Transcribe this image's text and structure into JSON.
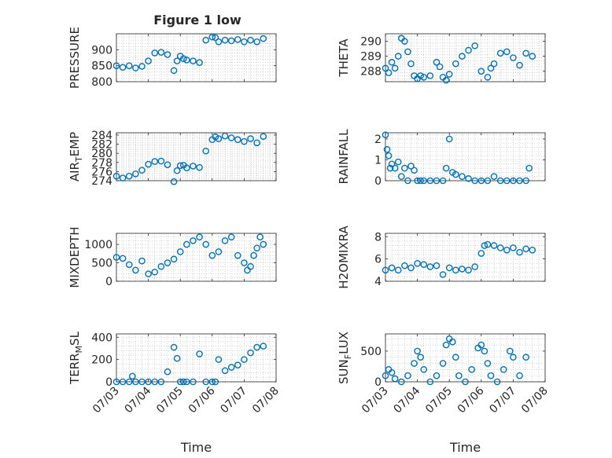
{
  "figure": {
    "title": "Figure 1 low"
  },
  "colors": {
    "marker": "#0072BD",
    "axis": "#262626",
    "grid": "#b8b8b8",
    "background": "#ffffff"
  },
  "chart_data": [
    {
      "type": "scatter",
      "ylabel": "PRESSURE",
      "ylim": [
        800,
        950
      ],
      "yticks": [
        800,
        850,
        900
      ],
      "xlim": [
        0,
        5
      ],
      "xticks": [
        0,
        1,
        2,
        3,
        4,
        5
      ],
      "x_tick_labels": [],
      "xlabel": "",
      "grid": true,
      "x": [
        0.0,
        0.2,
        0.4,
        0.6,
        0.8,
        1.0,
        1.2,
        1.4,
        1.6,
        1.8,
        1.9,
        2.0,
        2.1,
        2.2,
        2.4,
        2.6,
        2.8,
        3.0,
        3.1,
        3.2,
        3.4,
        3.6,
        3.8,
        4.0,
        4.2,
        4.4,
        4.6
      ],
      "y": [
        850,
        845,
        850,
        843,
        848,
        865,
        890,
        892,
        885,
        835,
        865,
        880,
        872,
        868,
        865,
        860,
        930,
        940,
        938,
        925,
        930,
        928,
        932,
        925,
        930,
        925,
        935
      ]
    },
    {
      "type": "scatter",
      "ylabel": "THETA",
      "ylim": [
        287.3,
        290.5
      ],
      "yticks": [
        288,
        289,
        290
      ],
      "xlim": [
        0,
        5
      ],
      "xticks": [
        0,
        1,
        2,
        3,
        4,
        5
      ],
      "x_tick_labels": [],
      "xlabel": "",
      "grid": true,
      "x": [
        0.0,
        0.1,
        0.2,
        0.3,
        0.4,
        0.5,
        0.6,
        0.7,
        0.8,
        0.9,
        1.0,
        1.1,
        1.2,
        1.4,
        1.6,
        1.7,
        1.8,
        1.9,
        2.0,
        2.2,
        2.4,
        2.6,
        2.8,
        3.0,
        3.2,
        3.3,
        3.4,
        3.6,
        3.8,
        4.0,
        4.2,
        4.4,
        4.6
      ],
      "y": [
        288.2,
        287.9,
        288.6,
        288.2,
        289.0,
        290.2,
        290.0,
        289.3,
        288.5,
        287.7,
        287.5,
        287.7,
        287.6,
        287.7,
        288.6,
        288.3,
        287.6,
        287.4,
        287.8,
        288.5,
        289.0,
        289.4,
        289.7,
        288.0,
        287.6,
        288.2,
        288.5,
        289.2,
        289.3,
        288.9,
        288.4,
        289.2,
        289.0
      ]
    },
    {
      "type": "scatter",
      "ylabel_main": "AIR",
      "ylabel_sub": "T",
      "ylabel_rest": "EMP",
      "ylim": [
        274,
        284.5
      ],
      "yticks": [
        274,
        276,
        278,
        280,
        282,
        284
      ],
      "xlim": [
        0,
        5
      ],
      "xticks": [
        0,
        1,
        2,
        3,
        4,
        5
      ],
      "x_tick_labels": [],
      "xlabel": "",
      "grid": true,
      "x": [
        0.0,
        0.2,
        0.4,
        0.6,
        0.8,
        1.0,
        1.2,
        1.4,
        1.6,
        1.8,
        1.9,
        2.0,
        2.1,
        2.2,
        2.4,
        2.6,
        2.8,
        3.0,
        3.1,
        3.2,
        3.4,
        3.6,
        3.8,
        4.0,
        4.2,
        4.4,
        4.6
      ],
      "y": [
        275,
        274.6,
        275,
        275.5,
        276.3,
        277.6,
        278.2,
        278.3,
        277.5,
        273.8,
        276.2,
        277.3,
        277.4,
        276.8,
        277.2,
        276.9,
        280.5,
        283,
        283.6,
        283.2,
        283.8,
        283.4,
        283.0,
        282.6,
        283.2,
        282.3,
        283.7
      ]
    },
    {
      "type": "scatter",
      "ylabel": "RAINFALL",
      "ylim": [
        0,
        2.3
      ],
      "yticks": [
        0,
        1,
        2
      ],
      "xlim": [
        0,
        5
      ],
      "xticks": [
        0,
        1,
        2,
        3,
        4,
        5
      ],
      "x_tick_labels": [],
      "xlabel": "",
      "grid": true,
      "x": [
        0.0,
        0.05,
        0.1,
        0.15,
        0.2,
        0.3,
        0.4,
        0.5,
        0.6,
        0.7,
        0.8,
        0.9,
        1.0,
        1.1,
        1.2,
        1.4,
        1.6,
        1.8,
        1.9,
        2.0,
        2.1,
        2.2,
        2.4,
        2.6,
        2.8,
        3.0,
        3.2,
        3.4,
        3.6,
        3.8,
        4.0,
        4.2,
        4.4,
        4.5
      ],
      "y": [
        2.2,
        1.5,
        1.2,
        0.6,
        0.8,
        0.6,
        0.9,
        0.2,
        0.6,
        0.0,
        0.7,
        0.5,
        0.0,
        0.0,
        0.0,
        0.0,
        0.0,
        0.0,
        0.6,
        2.0,
        0.4,
        0.3,
        0.2,
        0.1,
        0.0,
        0.0,
        0.0,
        0.2,
        0.0,
        0.0,
        0.0,
        0.0,
        0.0,
        0.6
      ]
    },
    {
      "type": "scatter",
      "ylabel": "MIXDEPTH",
      "ylim": [
        0,
        1300
      ],
      "yticks": [
        0,
        500,
        1000
      ],
      "xlim": [
        0,
        5
      ],
      "xticks": [
        0,
        1,
        2,
        3,
        4,
        5
      ],
      "x_tick_labels": [],
      "xlabel": "",
      "grid": true,
      "x": [
        0.0,
        0.2,
        0.4,
        0.6,
        0.8,
        1.0,
        1.2,
        1.4,
        1.6,
        1.8,
        2.0,
        2.2,
        2.4,
        2.6,
        2.8,
        3.0,
        3.2,
        3.4,
        3.6,
        3.8,
        4.0,
        4.1,
        4.2,
        4.3,
        4.4,
        4.5,
        4.6
      ],
      "y": [
        650,
        620,
        450,
        300,
        550,
        200,
        250,
        400,
        500,
        600,
        800,
        1000,
        1100,
        1200,
        1000,
        700,
        800,
        1100,
        1200,
        700,
        500,
        300,
        400,
        700,
        900,
        1200,
        1000
      ]
    },
    {
      "type": "scatter",
      "ylabel": "H2OMIXRA",
      "ylim": [
        4,
        8.3
      ],
      "yticks": [
        4,
        6,
        8
      ],
      "xlim": [
        0,
        5
      ],
      "xticks": [
        0,
        1,
        2,
        3,
        4,
        5
      ],
      "x_tick_labels": [],
      "xlabel": "",
      "grid": true,
      "x": [
        0.0,
        0.2,
        0.4,
        0.6,
        0.8,
        1.0,
        1.2,
        1.4,
        1.6,
        1.8,
        2.0,
        2.2,
        2.4,
        2.6,
        2.8,
        3.0,
        3.1,
        3.2,
        3.4,
        3.6,
        3.8,
        4.0,
        4.2,
        4.4,
        4.6
      ],
      "y": [
        5.0,
        5.2,
        5.0,
        5.4,
        5.2,
        5.6,
        5.5,
        5.3,
        5.4,
        4.6,
        5.2,
        5.0,
        5.1,
        5.0,
        5.3,
        6.5,
        7.2,
        7.3,
        7.2,
        7.0,
        6.8,
        7.0,
        6.6,
        6.9,
        6.8
      ]
    },
    {
      "type": "scatter",
      "ylabel_main": "TERR",
      "ylabel_sub": "M",
      "ylabel_rest": "SL",
      "ylim": [
        0,
        430
      ],
      "yticks": [
        0,
        200,
        400
      ],
      "xlim": [
        0,
        5
      ],
      "xticks": [
        0,
        1,
        2,
        3,
        4,
        5
      ],
      "x_tick_labels": [
        "07/03",
        "07/04",
        "07/05",
        "07/06",
        "07/07",
        "07/08"
      ],
      "xlabel": "Time",
      "grid": true,
      "x": [
        0.0,
        0.2,
        0.4,
        0.5,
        0.6,
        0.8,
        1.0,
        1.2,
        1.4,
        1.6,
        1.8,
        1.9,
        2.0,
        2.1,
        2.2,
        2.4,
        2.6,
        2.8,
        3.0,
        3.1,
        3.2,
        3.4,
        3.6,
        3.8,
        4.0,
        4.2,
        4.4,
        4.6
      ],
      "y": [
        0,
        0,
        0,
        50,
        0,
        0,
        0,
        0,
        0,
        90,
        310,
        210,
        0,
        0,
        0,
        0,
        250,
        0,
        0,
        0,
        200,
        100,
        130,
        150,
        200,
        260,
        310,
        320
      ]
    },
    {
      "type": "scatter",
      "ylabel_main": "SUN",
      "ylabel_sub": "F",
      "ylabel_rest": "LUX",
      "ylim": [
        0,
        780
      ],
      "yticks": [
        0,
        500
      ],
      "xlim": [
        0,
        5
      ],
      "xticks": [
        0,
        1,
        2,
        3,
        4,
        5
      ],
      "x_tick_labels": [
        "07/03",
        "07/04",
        "07/05",
        "07/06",
        "07/07",
        "07/08"
      ],
      "xlabel": "Time",
      "grid": true,
      "x": [
        0.0,
        0.1,
        0.2,
        0.3,
        0.5,
        0.7,
        0.9,
        1.0,
        1.1,
        1.2,
        1.4,
        1.6,
        1.8,
        1.9,
        2.0,
        2.1,
        2.2,
        2.3,
        2.5,
        2.7,
        2.9,
        3.0,
        3.1,
        3.2,
        3.3,
        3.5,
        3.7,
        3.9,
        4.0,
        4.2,
        4.4
      ],
      "y": [
        100,
        200,
        150,
        50,
        0,
        100,
        300,
        500,
        400,
        200,
        0,
        100,
        300,
        600,
        700,
        650,
        400,
        100,
        0,
        200,
        550,
        600,
        500,
        300,
        100,
        0,
        200,
        500,
        400,
        100,
        400
      ]
    }
  ]
}
